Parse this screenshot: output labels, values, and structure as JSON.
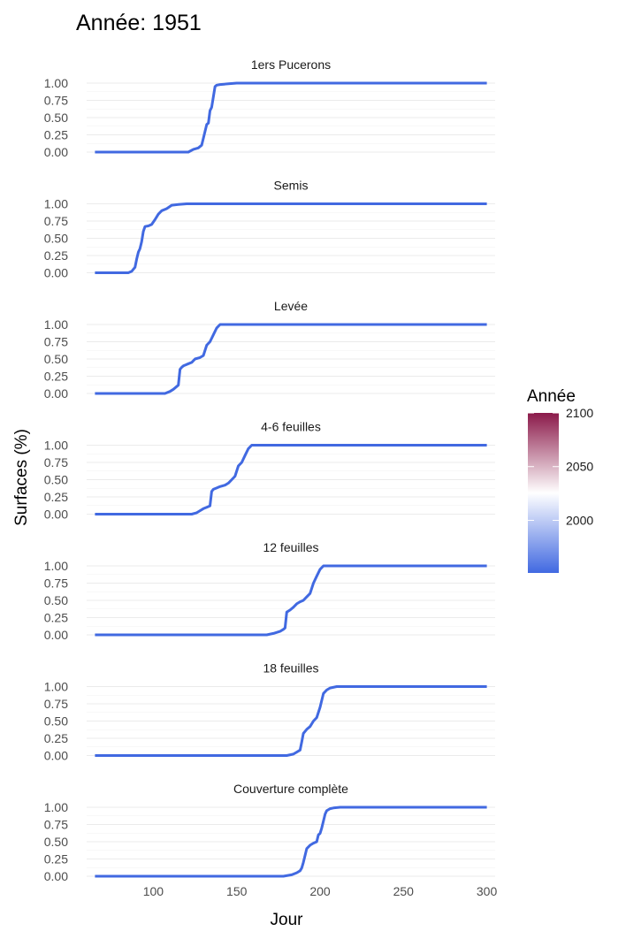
{
  "chart_data": {
    "type": "line",
    "title": "Année: 1951",
    "xlabel": "Jour",
    "ylabel": "Surfaces (%)",
    "xlim": [
      60,
      305
    ],
    "ylim": [
      0,
      1
    ],
    "x_ticks": [
      100,
      150,
      200,
      250,
      300
    ],
    "x_tick_labels": [
      "100",
      "150",
      "200",
      "250",
      "300"
    ],
    "y_ticks": [
      0,
      0.25,
      0.5,
      0.75,
      1
    ],
    "y_tick_labels": [
      "0.00",
      "0.25",
      "0.50",
      "0.75",
      "1.00"
    ],
    "grid": true,
    "line_color": "#4169E1",
    "legend": {
      "title": "Année",
      "position": "right",
      "min": 1951,
      "max": 2100,
      "ticks": [
        2000,
        2050,
        2100
      ],
      "tick_labels": [
        "2000",
        "2050",
        "2100"
      ],
      "colors": [
        "#4169E1",
        "#ffffff",
        "#8B1A4A"
      ]
    },
    "panels": [
      {
        "label": "1ers Pucerons",
        "x": [
          65,
          121,
          124,
          127,
          129,
          131,
          132,
          133,
          134,
          135,
          136,
          137,
          138,
          140,
          145,
          150,
          160,
          300
        ],
        "y": [
          0,
          0,
          0.04,
          0.06,
          0.1,
          0.3,
          0.4,
          0.42,
          0.6,
          0.65,
          0.8,
          0.95,
          0.97,
          0.98,
          0.99,
          1,
          1,
          1
        ]
      },
      {
        "label": "Semis",
        "x": [
          65,
          85,
          87,
          88,
          89,
          90,
          91,
          92,
          93,
          94,
          95,
          97,
          99,
          101,
          103,
          105,
          108,
          111,
          115,
          120,
          300
        ],
        "y": [
          0,
          0,
          0.02,
          0.05,
          0.08,
          0.2,
          0.3,
          0.35,
          0.45,
          0.6,
          0.67,
          0.68,
          0.7,
          0.77,
          0.85,
          0.9,
          0.93,
          0.98,
          0.99,
          1,
          1
        ]
      },
      {
        "label": "Levée",
        "x": [
          65,
          107,
          110,
          112,
          114,
          115,
          116,
          117,
          118,
          120,
          123,
          125,
          128,
          130,
          132,
          134,
          136,
          138,
          140,
          300
        ],
        "y": [
          0,
          0,
          0.03,
          0.06,
          0.1,
          0.12,
          0.35,
          0.38,
          0.4,
          0.42,
          0.45,
          0.5,
          0.52,
          0.55,
          0.7,
          0.75,
          0.85,
          0.95,
          1,
          1
        ]
      },
      {
        "label": "4-6 feuilles",
        "x": [
          65,
          123,
          126,
          128,
          130,
          132,
          134,
          135,
          136,
          138,
          140,
          143,
          145,
          147,
          149,
          151,
          153,
          155,
          157,
          159,
          300
        ],
        "y": [
          0,
          0,
          0.02,
          0.05,
          0.08,
          0.1,
          0.12,
          0.33,
          0.36,
          0.38,
          0.4,
          0.42,
          0.45,
          0.5,
          0.55,
          0.7,
          0.75,
          0.85,
          0.95,
          1,
          1
        ]
      },
      {
        "label": "12 feuilles",
        "x": [
          65,
          168,
          172,
          176,
          178,
          179,
          180,
          182,
          184,
          186,
          188,
          190,
          192,
          194,
          196,
          198,
          200,
          202,
          300
        ],
        "y": [
          0,
          0,
          0.02,
          0.05,
          0.08,
          0.1,
          0.33,
          0.36,
          0.4,
          0.45,
          0.48,
          0.5,
          0.55,
          0.6,
          0.75,
          0.85,
          0.95,
          1,
          1
        ]
      },
      {
        "label": "18 feuilles",
        "x": [
          65,
          180,
          184,
          186,
          188,
          189,
          190,
          192,
          194,
          196,
          198,
          200,
          202,
          204,
          206,
          210,
          300
        ],
        "y": [
          0,
          0,
          0.02,
          0.05,
          0.08,
          0.2,
          0.32,
          0.38,
          0.42,
          0.5,
          0.55,
          0.7,
          0.9,
          0.95,
          0.98,
          1,
          1
        ]
      },
      {
        "label": "Couverture complète",
        "x": [
          65,
          178,
          183,
          186,
          188,
          189,
          190,
          191,
          192,
          194,
          196,
          198,
          199,
          200,
          201,
          202,
          203,
          204,
          206,
          208,
          212,
          300
        ],
        "y": [
          0,
          0,
          0.02,
          0.05,
          0.08,
          0.12,
          0.2,
          0.3,
          0.4,
          0.45,
          0.48,
          0.5,
          0.6,
          0.62,
          0.7,
          0.8,
          0.9,
          0.95,
          0.98,
          0.99,
          1,
          1
        ]
      }
    ]
  }
}
